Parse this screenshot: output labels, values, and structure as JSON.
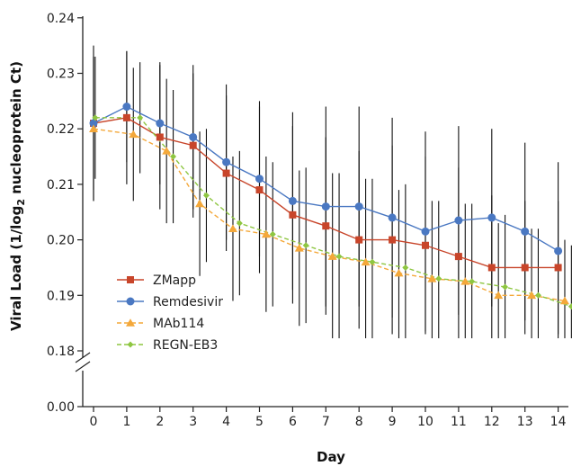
{
  "chart_data": {
    "type": "line",
    "xlabel": "Day",
    "ylabel": "Viral Load (1/log",
    "ylabel_sub": "2",
    "ylabel_rest": " nucleoprotein Ct)",
    "x_ticks": [
      "0",
      "1",
      "2",
      "3",
      "4",
      "5",
      "6",
      "7",
      "8",
      "9",
      "10",
      "11",
      "12",
      "13",
      "14"
    ],
    "y_ticks": [
      "0.00",
      "0.18",
      "0.19",
      "0.20",
      "0.21",
      "0.22",
      "0.23",
      "0.24"
    ],
    "xlim": [
      -0.3,
      14.5
    ],
    "ylim": [
      0.18,
      0.24
    ],
    "y_axis_break": true,
    "grid": false,
    "legend_position": "bottom-left",
    "series": [
      {
        "name": "ZMapp",
        "color": "#c8452a",
        "marker": "square",
        "dashed": false,
        "x": [
          0,
          1,
          2,
          3,
          4,
          5,
          6,
          7,
          8,
          9,
          10,
          11,
          12,
          13,
          14
        ],
        "y": [
          0.221,
          0.222,
          0.2185,
          0.217,
          0.212,
          0.209,
          0.2045,
          0.2025,
          0.2,
          0.2,
          0.199,
          0.197,
          0.195,
          0.195,
          0.195
        ],
        "err": [
          0.014,
          0.012,
          0.013,
          0.013,
          0.014,
          0.015,
          0.016,
          0.016,
          0.016,
          0.017,
          0.016,
          0.016,
          0.013,
          0.012,
          0.012
        ]
      },
      {
        "name": "Remdesivir",
        "color": "#4a78c2",
        "marker": "circle",
        "dashed": false,
        "x": [
          0,
          1,
          2,
          3,
          4,
          5,
          6,
          7,
          8,
          9,
          10,
          11,
          12,
          13,
          14
        ],
        "y": [
          0.221,
          0.224,
          0.221,
          0.2185,
          0.214,
          0.211,
          0.207,
          0.206,
          0.206,
          0.204,
          0.2015,
          0.2035,
          0.204,
          0.2015,
          0.198
        ],
        "err": [
          0.012,
          0.01,
          0.011,
          0.013,
          0.014,
          0.014,
          0.016,
          0.018,
          0.018,
          0.018,
          0.018,
          0.017,
          0.016,
          0.016,
          0.016
        ]
      },
      {
        "name": "MAb114",
        "color": "#f4a83a",
        "marker": "triangle",
        "dashed": true,
        "x": [
          0,
          1.2,
          2.2,
          3.2,
          4.2,
          5.2,
          6.2,
          7.2,
          8.2,
          9.2,
          10.2,
          11.2,
          12.2,
          13.2,
          14.2
        ],
        "y": [
          0.22,
          0.219,
          0.216,
          0.2065,
          0.202,
          0.201,
          0.1985,
          0.197,
          0.196,
          0.194,
          0.193,
          0.1925,
          0.19,
          0.19,
          0.189
        ],
        "err": [
          0.013,
          0.012,
          0.013,
          0.013,
          0.013,
          0.014,
          0.014,
          0.015,
          0.015,
          0.015,
          0.014,
          0.014,
          0.013,
          0.012,
          0.011
        ]
      },
      {
        "name": "REGN-EB3",
        "color": "#8ec641",
        "marker": "diamond",
        "dashed": true,
        "x": [
          0.05,
          1.4,
          2.4,
          3.4,
          4.4,
          5.4,
          6.4,
          7.4,
          8.4,
          9.4,
          10.4,
          11.4,
          12.4,
          13.4,
          14.4
        ],
        "y": [
          0.222,
          0.222,
          0.215,
          0.208,
          0.203,
          0.201,
          0.199,
          0.197,
          0.196,
          0.195,
          0.193,
          0.1925,
          0.1915,
          0.19,
          0.188
        ],
        "err": [
          0.011,
          0.01,
          0.012,
          0.012,
          0.013,
          0.013,
          0.014,
          0.015,
          0.015,
          0.015,
          0.014,
          0.014,
          0.013,
          0.012,
          0.011
        ]
      }
    ]
  }
}
